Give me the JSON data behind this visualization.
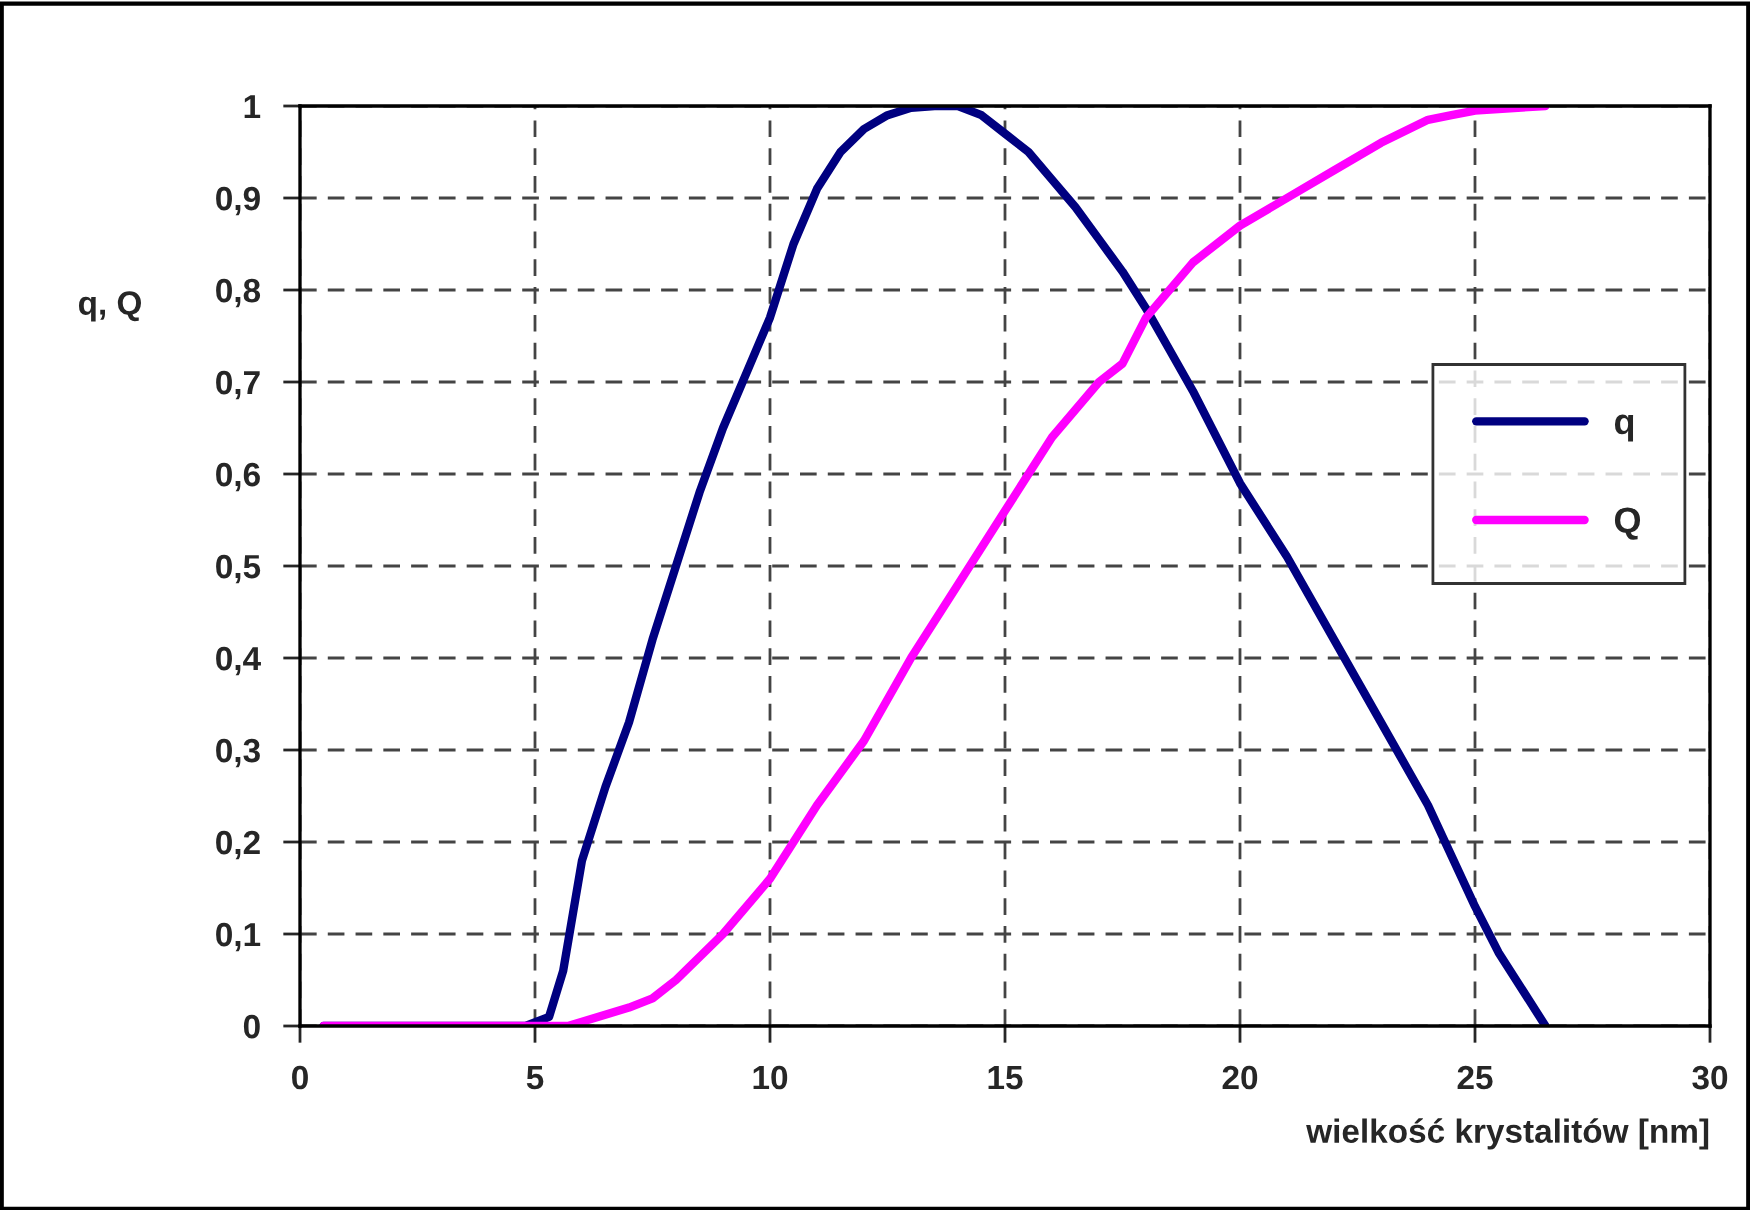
{
  "chart_data": {
    "type": "line",
    "xlabel": "wielkość krystalitów [nm]",
    "ylabel": "q, Q",
    "xlim": [
      0,
      30
    ],
    "xticks": [
      0,
      5,
      10,
      15,
      20,
      25,
      30
    ],
    "ylim": [
      0,
      1
    ],
    "yticks": [
      0,
      {
        "value": 0.1,
        "label": "0,1"
      },
      {
        "value": 0.2,
        "label": "0,2"
      },
      {
        "value": 0.3,
        "label": "0,3"
      },
      {
        "value": 0.4,
        "label": "0,4"
      },
      {
        "value": 0.5,
        "label": "0,5"
      },
      {
        "value": 0.6,
        "label": "0,6"
      },
      {
        "value": 0.7,
        "label": "0,7"
      },
      {
        "value": 0.8,
        "label": "0,8"
      },
      {
        "value": 0.9,
        "label": "0,9"
      },
      1
    ],
    "grid": true,
    "legend": "right",
    "marker": "none",
    "line_style": "solid",
    "series": [
      {
        "name": "q",
        "color": "#000080",
        "x": [
          0.5,
          4.8,
          5.3,
          5.6,
          6,
          6.5,
          7,
          7.5,
          8,
          8.5,
          9,
          9.5,
          10,
          10.5,
          11,
          11.5,
          12,
          12.5,
          13,
          13.5,
          14,
          14.5,
          15,
          15.5,
          16,
          16.5,
          17,
          17.5,
          18,
          18.5,
          19,
          19.5,
          20,
          21,
          22,
          23,
          24,
          25,
          25.5,
          26.5
        ],
        "values": [
          0,
          0,
          0.01,
          0.06,
          0.18,
          0.26,
          0.33,
          0.42,
          0.5,
          0.58,
          0.65,
          0.71,
          0.77,
          0.85,
          0.91,
          0.95,
          0.975,
          0.99,
          0.998,
          1.0,
          1.0,
          0.99,
          0.97,
          0.95,
          0.92,
          0.89,
          0.855,
          0.82,
          0.78,
          0.735,
          0.69,
          0.64,
          0.59,
          0.51,
          0.42,
          0.33,
          0.24,
          0.13,
          0.08,
          0
        ]
      },
      {
        "name": "Q",
        "color": "#ff00ff",
        "x": [
          0.5,
          5.7,
          7,
          7.5,
          8,
          9,
          10,
          11,
          12,
          13,
          14,
          15,
          16,
          17,
          17.5,
          18,
          19,
          20,
          21,
          22,
          23,
          24,
          24.5,
          25,
          26.5
        ],
        "values": [
          0,
          0,
          0.02,
          0.03,
          0.05,
          0.1,
          0.16,
          0.24,
          0.31,
          0.4,
          0.48,
          0.56,
          0.64,
          0.7,
          0.72,
          0.77,
          0.83,
          0.87,
          0.9,
          0.93,
          0.96,
          0.985,
          0.99,
          0.995,
          1.0
        ]
      }
    ]
  }
}
